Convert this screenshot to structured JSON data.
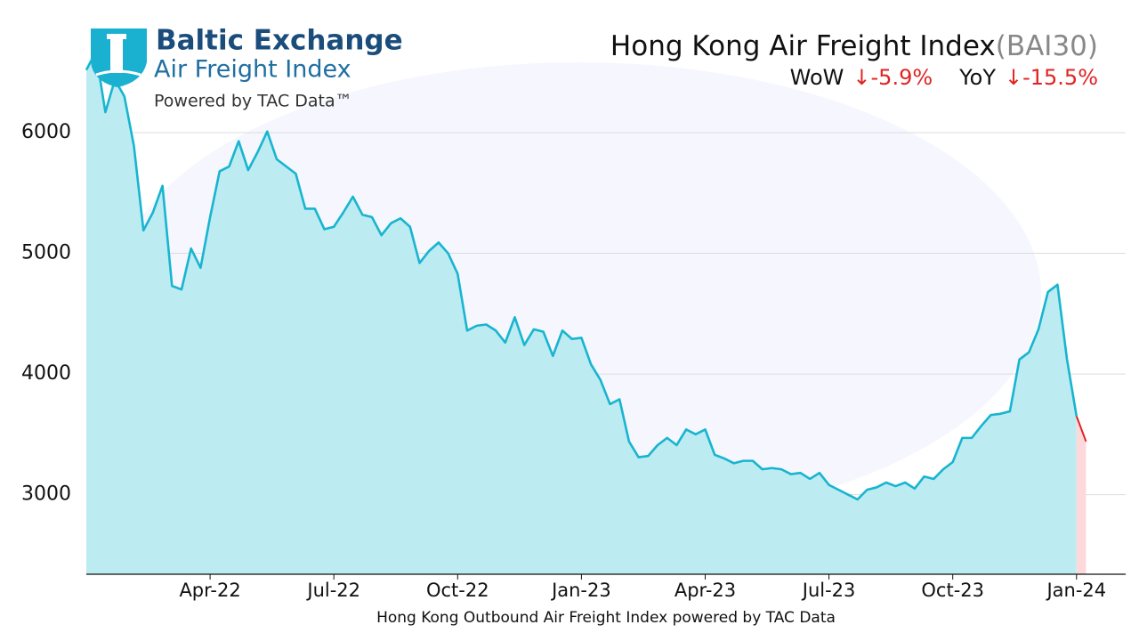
{
  "logo": {
    "name": "Baltic Exchange",
    "product": "Air Freight Index",
    "tagline": "Powered by TAC Data™"
  },
  "chart_data": {
    "type": "line",
    "title": "Hong Kong Air Freight Index",
    "title_suffix": "(BAI30)",
    "annotations": [
      {
        "label": "WoW",
        "text": "↓-5.9%"
      },
      {
        "label": "YoY",
        "text": "↓-15.5%"
      }
    ],
    "x_label": "Hong Kong Outbound Air Freight Index powered by TAC Data",
    "categories": [
      null,
      null,
      null,
      null,
      null,
      null,
      null,
      null,
      null,
      null,
      null,
      null,
      null,
      "Apr-22",
      null,
      null,
      null,
      null,
      null,
      null,
      null,
      null,
      null,
      null,
      null,
      null,
      "Jul-22",
      null,
      null,
      null,
      null,
      null,
      null,
      null,
      null,
      null,
      null,
      null,
      null,
      "Oct-22",
      null,
      null,
      null,
      null,
      null,
      null,
      null,
      null,
      null,
      null,
      null,
      null,
      "Jan-23",
      null,
      null,
      null,
      null,
      null,
      null,
      null,
      null,
      null,
      null,
      null,
      null,
      "Apr-23",
      null,
      null,
      null,
      null,
      null,
      null,
      null,
      null,
      null,
      null,
      null,
      null,
      "Jul-23",
      null,
      null,
      null,
      null,
      null,
      null,
      null,
      null,
      null,
      null,
      null,
      null,
      "Oct-23",
      null,
      null,
      null,
      null,
      null,
      null,
      null,
      null,
      null,
      null,
      null,
      null,
      "Jan-24",
      null
    ],
    "values": [
      6520,
      6670,
      6170,
      6440,
      6300,
      5890,
      5190,
      5340,
      5560,
      4730,
      4700,
      5040,
      4880,
      5300,
      5680,
      5720,
      5930,
      5690,
      5840,
      6010,
      5780,
      5720,
      5660,
      5370,
      5370,
      5200,
      5220,
      5340,
      5470,
      5320,
      5300,
      5150,
      5250,
      5290,
      5220,
      4920,
      5020,
      5090,
      5000,
      4830,
      4360,
      4400,
      4410,
      4360,
      4260,
      4470,
      4240,
      4370,
      4350,
      4150,
      4360,
      4290,
      4300,
      4080,
      3950,
      3750,
      3790,
      3440,
      3310,
      3320,
      3410,
      3470,
      3410,
      3540,
      3500,
      3540,
      3330,
      3300,
      3260,
      3280,
      3280,
      3210,
      3220,
      3210,
      3170,
      3180,
      3130,
      3180,
      3080,
      3040,
      3000,
      2960,
      3040,
      3060,
      3100,
      3070,
      3100,
      3050,
      3150,
      3130,
      3210,
      3270,
      3470,
      3470,
      3570,
      3660,
      3670,
      3690,
      4120,
      4180,
      4370,
      4680,
      4740,
      4120,
      3650,
      3440
    ],
    "color": "#17b5cf",
    "fill_color": "#bdebf2",
    "highlight_last": true,
    "highlight_color": "#e02424",
    "highlight_fill": "#fdd9dc",
    "ylim": [
      2340,
      7100
    ],
    "yticks": [
      3000,
      4000,
      5000,
      6000
    ],
    "grid": true
  }
}
